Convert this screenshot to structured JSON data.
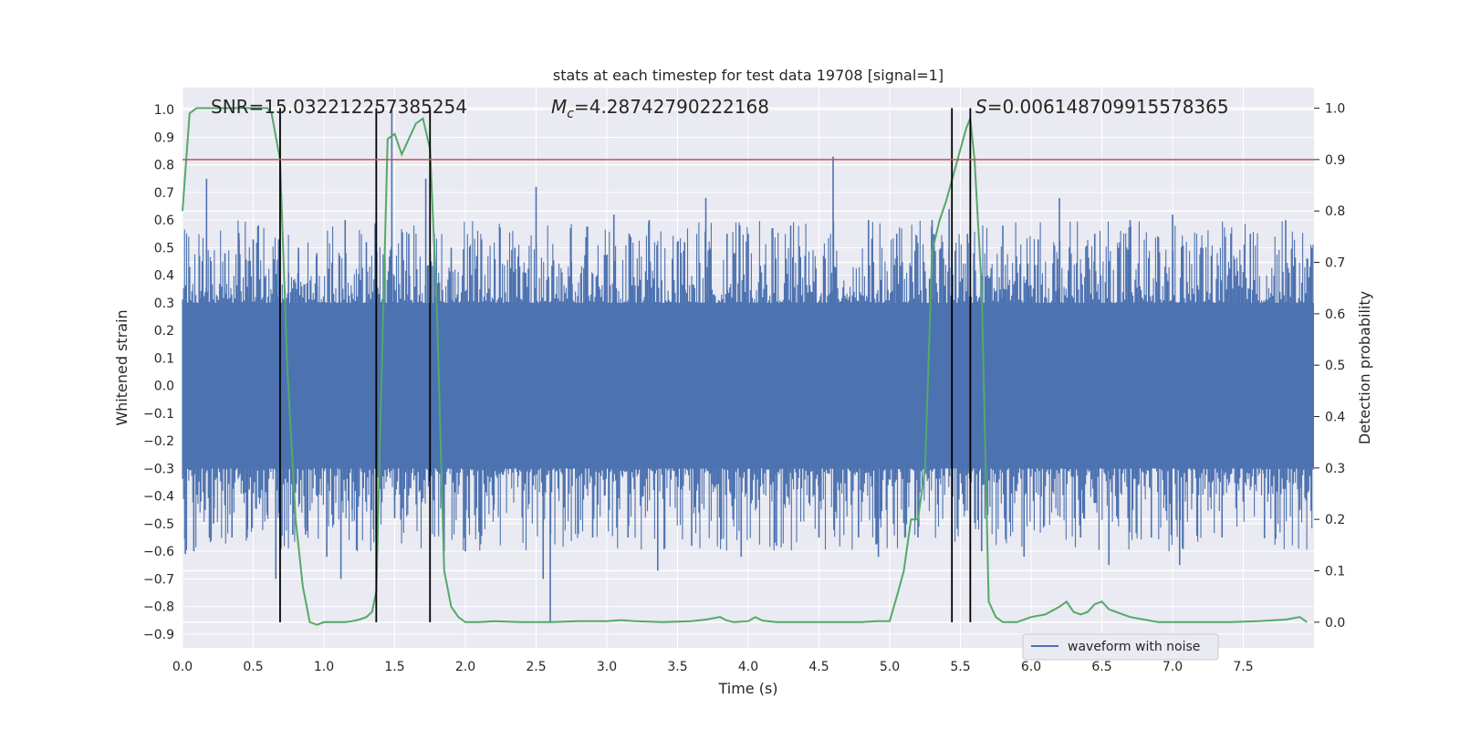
{
  "chart_data": {
    "type": "line",
    "title": "stats at each timestep for test data 19708 [signal=1]",
    "xlabel": "Time (s)",
    "ylabel": "Whitened strain",
    "y2label": "Detection probability",
    "xlim": [
      0.0,
      8.0
    ],
    "ylim": [
      -0.95,
      1.08
    ],
    "y2lim": [
      -0.05,
      1.04
    ],
    "x_ticks": [
      "0.0",
      "0.5",
      "1.0",
      "1.5",
      "2.0",
      "2.5",
      "3.0",
      "3.5",
      "4.0",
      "4.5",
      "5.0",
      "5.5",
      "6.0",
      "6.5",
      "7.0",
      "7.5"
    ],
    "y_ticks": [
      "1.0",
      "0.9",
      "0.8",
      "0.7",
      "0.6",
      "0.5",
      "0.4",
      "0.3",
      "0.2",
      "0.1",
      "0.0",
      "-0.1",
      "-0.2",
      "-0.3",
      "-0.4",
      "-0.5",
      "-0.6",
      "-0.7",
      "-0.8",
      "-0.9"
    ],
    "y2_ticks": [
      "1.0",
      "0.9",
      "0.8",
      "0.7",
      "0.6",
      "0.5",
      "0.4",
      "0.3",
      "0.2",
      "0.1",
      "0.0"
    ],
    "annotations": {
      "snr": "SNR=15.032212257385254",
      "mc_symbol": "M",
      "mc_sub": "c",
      "mc_value": "=4.28742790222168",
      "s_symbol": "S",
      "s_value": "=0.006148709915578365"
    },
    "legend": {
      "label": "waveform with noise",
      "placement": "lower-right"
    },
    "threshold": 0.9,
    "vertical_lines": [
      0.69,
      1.37,
      1.75,
      5.44,
      5.57
    ],
    "waveform": {
      "name": "waveform with noise",
      "color": "#4c72b0",
      "core_low": -0.3,
      "core_high": 0.3,
      "spikes": [
        [
          0.02,
          -0.61
        ],
        [
          0.05,
          0.43
        ],
        [
          0.08,
          -0.6
        ],
        [
          0.12,
          0.47
        ],
        [
          0.16,
          -0.45
        ],
        [
          0.17,
          0.75
        ],
        [
          0.22,
          -0.5
        ],
        [
          0.3,
          0.48
        ],
        [
          0.35,
          -0.55
        ],
        [
          0.4,
          0.53
        ],
        [
          0.46,
          -0.52
        ],
        [
          0.5,
          0.53
        ],
        [
          0.6,
          -0.47
        ],
        [
          0.66,
          -0.7
        ],
        [
          0.68,
          0.53
        ],
        [
          0.75,
          0.41
        ],
        [
          0.78,
          -0.54
        ],
        [
          0.82,
          0.5
        ],
        [
          0.87,
          -0.54
        ],
        [
          0.95,
          0.48
        ],
        [
          1.02,
          -0.62
        ],
        [
          1.12,
          -0.7
        ],
        [
          1.15,
          0.6
        ],
        [
          1.2,
          -0.45
        ],
        [
          1.3,
          0.52
        ],
        [
          1.35,
          -0.52
        ],
        [
          1.48,
          1.0
        ],
        [
          1.5,
          -0.48
        ],
        [
          1.6,
          0.55
        ],
        [
          1.72,
          0.75
        ],
        [
          1.78,
          0.55
        ],
        [
          1.85,
          -0.6
        ],
        [
          1.9,
          0.5
        ],
        [
          2.0,
          -0.6
        ],
        [
          2.08,
          0.47
        ],
        [
          2.2,
          -0.45
        ],
        [
          2.35,
          0.5
        ],
        [
          2.5,
          0.72
        ],
        [
          2.55,
          -0.7
        ],
        [
          2.6,
          -0.86
        ],
        [
          2.75,
          0.45
        ],
        [
          2.9,
          -0.55
        ],
        [
          3.05,
          0.62
        ],
        [
          3.15,
          -0.55
        ],
        [
          3.3,
          0.6
        ],
        [
          3.36,
          -0.67
        ],
        [
          3.55,
          0.52
        ],
        [
          3.6,
          -0.58
        ],
        [
          3.7,
          0.68
        ],
        [
          3.85,
          0.55
        ],
        [
          3.95,
          -0.62
        ],
        [
          4.0,
          0.55
        ],
        [
          4.2,
          -0.58
        ],
        [
          4.3,
          0.58
        ],
        [
          4.5,
          -0.55
        ],
        [
          4.6,
          0.83
        ],
        [
          4.78,
          -0.55
        ],
        [
          4.85,
          0.6
        ],
        [
          4.92,
          -0.62
        ],
        [
          5.05,
          0.55
        ],
        [
          5.2,
          -0.55
        ],
        [
          5.3,
          0.6
        ],
        [
          5.42,
          0.64
        ],
        [
          5.48,
          -0.52
        ],
        [
          5.55,
          0.55
        ],
        [
          5.65,
          -0.6
        ],
        [
          5.8,
          0.58
        ],
        [
          5.95,
          -0.62
        ],
        [
          6.05,
          0.53
        ],
        [
          6.2,
          0.68
        ],
        [
          6.35,
          -0.55
        ],
        [
          6.45,
          0.55
        ],
        [
          6.55,
          -0.65
        ],
        [
          6.7,
          0.6
        ],
        [
          6.85,
          -0.55
        ],
        [
          7.0,
          0.62
        ],
        [
          7.05,
          -0.65
        ],
        [
          7.2,
          0.5
        ],
        [
          7.35,
          -0.55
        ],
        [
          7.55,
          0.55
        ],
        [
          7.65,
          -0.55
        ],
        [
          7.8,
          0.6
        ],
        [
          7.9,
          -0.45
        ],
        [
          7.95,
          0.35
        ]
      ]
    },
    "probability": {
      "name": "Detection probability",
      "color": "#55a868",
      "x": [
        0.0,
        0.05,
        0.1,
        0.2,
        0.3,
        0.4,
        0.5,
        0.6,
        0.63,
        0.69,
        0.74,
        0.8,
        0.85,
        0.9,
        0.95,
        1.0,
        1.05,
        1.1,
        1.15,
        1.2,
        1.25,
        1.3,
        1.34,
        1.37,
        1.41,
        1.45,
        1.5,
        1.55,
        1.6,
        1.65,
        1.7,
        1.75,
        1.8,
        1.85,
        1.9,
        1.95,
        2.0,
        2.1,
        2.2,
        2.4,
        2.6,
        2.8,
        3.0,
        3.1,
        3.2,
        3.4,
        3.6,
        3.7,
        3.8,
        3.85,
        3.9,
        4.0,
        4.05,
        4.1,
        4.2,
        4.4,
        4.6,
        4.8,
        4.9,
        5.0,
        5.05,
        5.1,
        5.15,
        5.2,
        5.25,
        5.3,
        5.35,
        5.4,
        5.44,
        5.5,
        5.54,
        5.57,
        5.6,
        5.65,
        5.7,
        5.75,
        5.8,
        5.85,
        5.9,
        6.0,
        6.1,
        6.2,
        6.25,
        6.3,
        6.35,
        6.4,
        6.45,
        6.5,
        6.55,
        6.6,
        6.65,
        6.7,
        6.8,
        6.9,
        7.0,
        7.2,
        7.4,
        7.6,
        7.8,
        7.9,
        7.95
      ],
      "y": [
        0.8,
        0.99,
        1.0,
        1.0,
        1.0,
        1.0,
        1.0,
        1.0,
        0.99,
        0.9,
        0.5,
        0.2,
        0.07,
        0.0,
        -0.005,
        0.0,
        0.0,
        0.0,
        0.0,
        0.002,
        0.005,
        0.01,
        0.02,
        0.06,
        0.5,
        0.94,
        0.95,
        0.91,
        0.94,
        0.97,
        0.98,
        0.92,
        0.6,
        0.1,
        0.03,
        0.01,
        0.0,
        0.0,
        0.002,
        0.0,
        0.0,
        0.002,
        0.002,
        0.004,
        0.002,
        0.0,
        0.002,
        0.005,
        0.01,
        0.003,
        0.0,
        0.002,
        0.01,
        0.003,
        0.0,
        0.0,
        0.0,
        0.0,
        0.002,
        0.002,
        0.05,
        0.1,
        0.2,
        0.2,
        0.3,
        0.72,
        0.78,
        0.82,
        0.86,
        0.92,
        0.96,
        0.98,
        0.9,
        0.65,
        0.04,
        0.01,
        0.0,
        0.0,
        0.0,
        0.01,
        0.015,
        0.03,
        0.04,
        0.02,
        0.015,
        0.02,
        0.035,
        0.04,
        0.025,
        0.02,
        0.015,
        0.01,
        0.005,
        0.0,
        0.0,
        0.0,
        0.0,
        0.002,
        0.005,
        0.01,
        0.0
      ]
    }
  }
}
